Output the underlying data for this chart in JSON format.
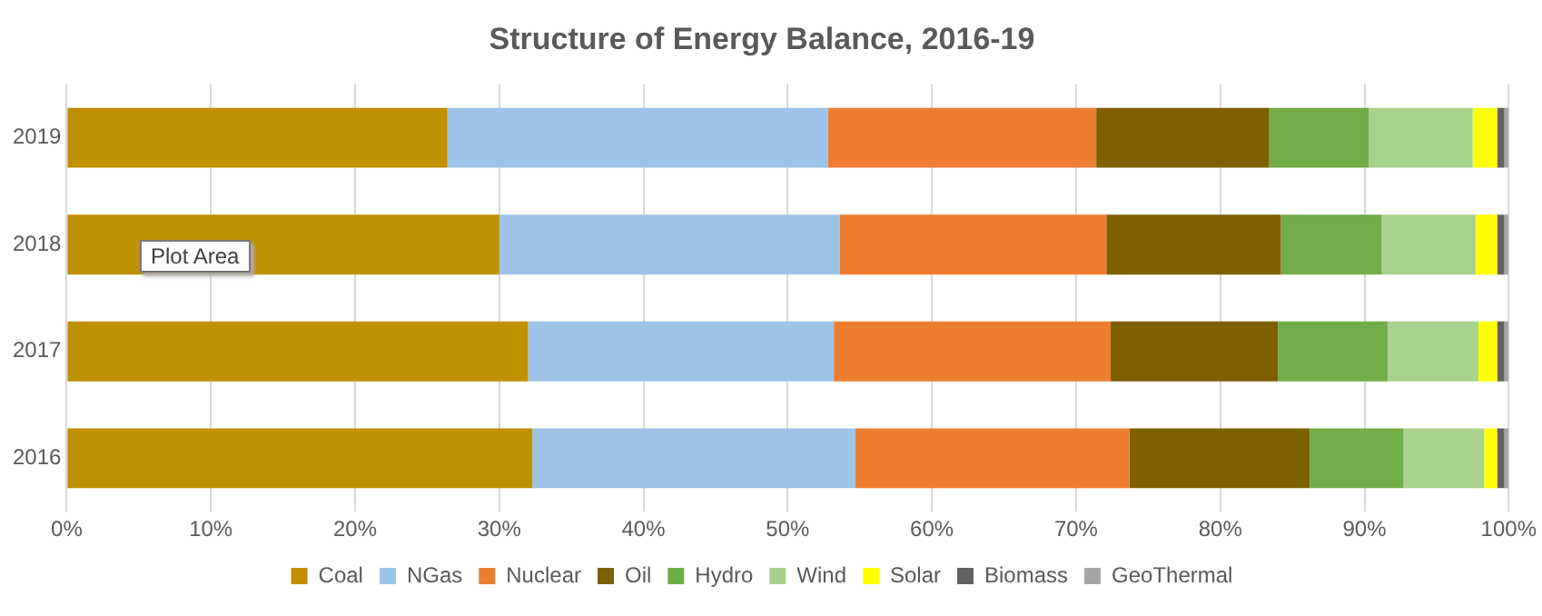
{
  "chart_data": {
    "type": "bar",
    "title": "Structure of Energy Balance, 2016-19",
    "orientation": "horizontal",
    "stacked": true,
    "categories": [
      "2019",
      "2018",
      "2017",
      "2016"
    ],
    "series": [
      {
        "name": "Coal",
        "color": "#bf9000",
        "values": [
          26.4,
          30.0,
          32.0,
          32.3
        ]
      },
      {
        "name": "NGas",
        "color": "#9dc3e6",
        "values": [
          26.4,
          23.6,
          21.2,
          22.4
        ]
      },
      {
        "name": "Nuclear",
        "color": "#ed7d31",
        "values": [
          18.6,
          18.5,
          19.2,
          19.0
        ]
      },
      {
        "name": "Oil",
        "color": "#7f6000",
        "values": [
          12.0,
          12.1,
          11.6,
          12.5
        ]
      },
      {
        "name": "Hydro",
        "color": "#70ad47",
        "values": [
          6.9,
          7.0,
          7.6,
          6.5
        ]
      },
      {
        "name": "Wind",
        "color": "#a9d18e",
        "values": [
          7.2,
          6.5,
          6.3,
          5.6
        ]
      },
      {
        "name": "Solar",
        "color": "#ffff00",
        "values": [
          1.7,
          1.5,
          1.3,
          0.9
        ]
      },
      {
        "name": "Biomass",
        "color": "#636363",
        "values": [
          0.5,
          0.5,
          0.5,
          0.5
        ]
      },
      {
        "name": "GeoThermal",
        "color": "#a5a5a5",
        "values": [
          0.3,
          0.3,
          0.3,
          0.3
        ]
      }
    ],
    "xlim": [
      0,
      100
    ],
    "xticks": [
      {
        "value": 0,
        "label": "0%"
      },
      {
        "value": 10,
        "label": "10%"
      },
      {
        "value": 20,
        "label": "20%"
      },
      {
        "value": 30,
        "label": "30%"
      },
      {
        "value": 40,
        "label": "40%"
      },
      {
        "value": 50,
        "label": "50%"
      },
      {
        "value": 60,
        "label": "60%"
      },
      {
        "value": 70,
        "label": "70%"
      },
      {
        "value": 80,
        "label": "80%"
      },
      {
        "value": 90,
        "label": "90%"
      },
      {
        "value": 100,
        "label": "100%"
      }
    ],
    "grid": "x",
    "legend": "bottom",
    "annotations": [
      "Plot Area"
    ]
  }
}
